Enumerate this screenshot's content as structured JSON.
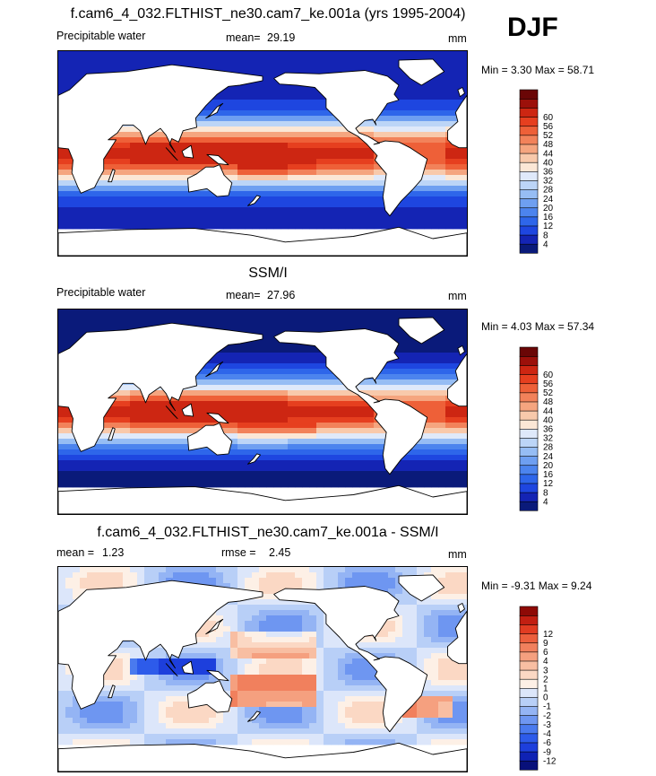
{
  "season": "DJF",
  "colors": {
    "abs_scale": [
      "#0a1a7a",
      "#1424b4",
      "#1e46e0",
      "#2e66ea",
      "#4c84ee",
      "#6e9ff1",
      "#96bdf4",
      "#bcd5f7",
      "#dfe9fa",
      "#fbe7d6",
      "#f8c9ab",
      "#f5a57f",
      "#f2825a",
      "#ee6038",
      "#e63f1f",
      "#cd2612",
      "#9c100a",
      "#6a0606"
    ],
    "diff_scale": [
      "#08107a",
      "#0f22b4",
      "#1d3fdc",
      "#2d5bea",
      "#4a7aee",
      "#6e96f1",
      "#94b4f4",
      "#b8cff7",
      "#dce6fa",
      "#fdf0e6",
      "#fbd8c4",
      "#f8bea2",
      "#f5a07f",
      "#f1805d",
      "#ec5f3d",
      "#e13c22",
      "#c21f12",
      "#8e0a06"
    ]
  },
  "chart_data": [
    {
      "type": "heatmap",
      "title": "f.cam6_4_032.FLTHIST_ne30.cam7_ke.001a (yrs 1995-2004)",
      "variable": "Precipitable water",
      "mean_label": "mean=",
      "mean": "29.19",
      "units": "mm",
      "min_max": "Min =   3.30 Max =  58.71",
      "colorbar_levels": [
        "4",
        "8",
        "12",
        "16",
        "20",
        "24",
        "28",
        "32",
        "36",
        "40",
        "44",
        "48",
        "52",
        "56",
        "60"
      ],
      "regions": {
        "deep_tropics": "52-60",
        "tropics": "40-52",
        "subtropics": "24-40",
        "midlatitudes": "12-24",
        "high_latitudes": "4-12"
      }
    },
    {
      "type": "heatmap",
      "title": "SSM/I",
      "variable": "Precipitable water",
      "mean_label": "mean=",
      "mean": "27.96",
      "units": "mm",
      "min_max": "Min =   4.03 Max =  57.34",
      "colorbar_levels": [
        "4",
        "8",
        "12",
        "16",
        "20",
        "24",
        "28",
        "32",
        "36",
        "40",
        "44",
        "48",
        "52",
        "56",
        "60"
      ]
    },
    {
      "type": "heatmap",
      "title": "f.cam6_4_032.FLTHIST_ne30.cam7_ke.001a - SSM/I",
      "mean_label": "mean =",
      "mean": "1.23",
      "rmse_label": "rmse =",
      "rmse": "2.45",
      "units": "mm",
      "min_max": "Min =  -9.31 Max =   9.24",
      "colorbar_levels": [
        "-12",
        "-9",
        "-6",
        "-4",
        "-3",
        "-2",
        "-1",
        "0",
        "1",
        "2",
        "3",
        "4",
        "6",
        "9",
        "12"
      ]
    }
  ]
}
